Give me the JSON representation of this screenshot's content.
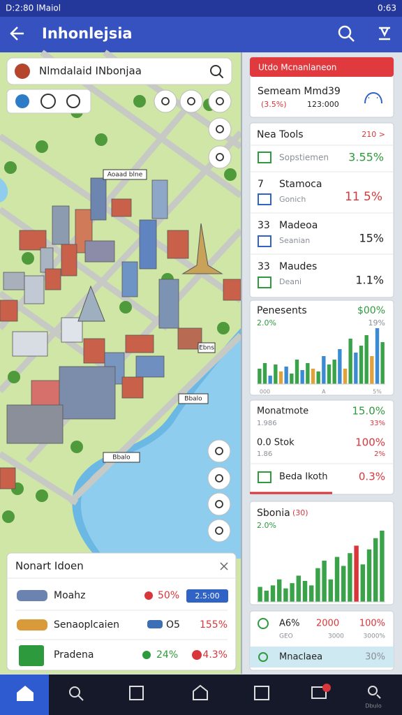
{
  "status_bar": {
    "left": "D:2:80 lMaiol",
    "time": "0:63"
  },
  "app_bar": {
    "title": "Inhonlejsia"
  },
  "map": {
    "search": "Nlmdalaid INbonjaa",
    "labels": [
      "Aoaad blne",
      "Ebns",
      "Bbalo",
      "Bbalo"
    ]
  },
  "map_card": {
    "title": "Nonart Idoen",
    "rows": [
      {
        "name": "Moahz",
        "value": "50%",
        "badge": "2.5:00"
      },
      {
        "name": "Senaoplcaien",
        "value": "O5",
        "change": "155%"
      },
      {
        "name": "Pradena",
        "value": "24%",
        "change": "4.3%"
      }
    ]
  },
  "panel": {
    "header": {
      "title": "Utdo Mcnanlaneon",
      "name": "Semeam Mmd39",
      "change": "(3.5%)",
      "value": "123:000"
    },
    "tools": {
      "title": "Nea Tools",
      "link": "210 >",
      "rows": [
        {
          "name": "Sopstiemen",
          "value": "3.55%"
        },
        {
          "num": "7",
          "name": "Stamoca",
          "sub": "Gonich",
          "value": "11 5%"
        },
        {
          "num": "33",
          "name": "Madeoa",
          "sub": "Seanian",
          "value": "15%"
        },
        {
          "num": "33",
          "name": "Maudes",
          "sub": "Deani",
          "value": "1.1%"
        }
      ]
    },
    "stats": {
      "rows": [
        {
          "name": "Monatmote",
          "value": "15.0%",
          "sub": "1.986",
          "sub_value": "33%"
        },
        {
          "name": "0.0 Stok",
          "value": "100%",
          "sub": "1.86",
          "sub_value": "2%"
        },
        {
          "name": "Beda Ikoth",
          "value": "0.3%"
        }
      ]
    },
    "summary": {
      "a": "A6%",
      "b": "2000",
      "c": "100%",
      "d": "GEO",
      "e": "3000",
      "f": "3000%",
      "footer": "Mnaclaea",
      "footer_value": "30%"
    }
  },
  "nav": {
    "label": "Dbulo"
  },
  "chart_data": [
    {
      "type": "bar",
      "title": "Penesents",
      "headline": "$00%",
      "notes": [
        "2.0%",
        "19%"
      ],
      "categories": [
        null,
        "000",
        null,
        null,
        null,
        null,
        null,
        null,
        null,
        null,
        null,
        null,
        "A",
        null,
        null,
        null,
        null,
        null,
        null,
        null,
        null,
        null,
        "5%",
        null
      ],
      "values": [
        22,
        30,
        12,
        28,
        18,
        25,
        15,
        35,
        20,
        30,
        22,
        18,
        40,
        28,
        35,
        50,
        22,
        65,
        45,
        55,
        70,
        40,
        80,
        60
      ],
      "colors": [
        "#3aa34a",
        "#3aa34a",
        "#3b8bd4",
        "#3aa34a",
        "#e0a23a",
        "#3b8bd4",
        "#3aa34a",
        "#3aa34a",
        "#3b8bd4",
        "#3aa34a",
        "#e0a23a",
        "#3aa34a",
        "#3b8bd4",
        "#3aa34a",
        "#3aa34a",
        "#3b8bd4",
        "#e0a23a",
        "#3aa34a",
        "#3b8bd4",
        "#3aa34a",
        "#3aa34a",
        "#e0a23a",
        "#3b8bd4",
        "#3aa34a"
      ]
    },
    {
      "type": "bar",
      "title": "Sbonia",
      "headline": "(30)",
      "notes": [
        "2.0%"
      ],
      "values": [
        20,
        15,
        22,
        30,
        18,
        25,
        35,
        28,
        22,
        45,
        55,
        30,
        60,
        48,
        65,
        75,
        50,
        70,
        85,
        95
      ],
      "colors": [
        "#3aa34a",
        "#3aa34a",
        "#3aa34a",
        "#3aa34a",
        "#3aa34a",
        "#3aa34a",
        "#3aa34a",
        "#3aa34a",
        "#3aa34a",
        "#3aa34a",
        "#3aa34a",
        "#3aa34a",
        "#3aa34a",
        "#3aa34a",
        "#3aa34a",
        "#d9363b",
        "#3aa34a",
        "#3aa34a",
        "#3aa34a",
        "#3aa34a"
      ]
    }
  ]
}
